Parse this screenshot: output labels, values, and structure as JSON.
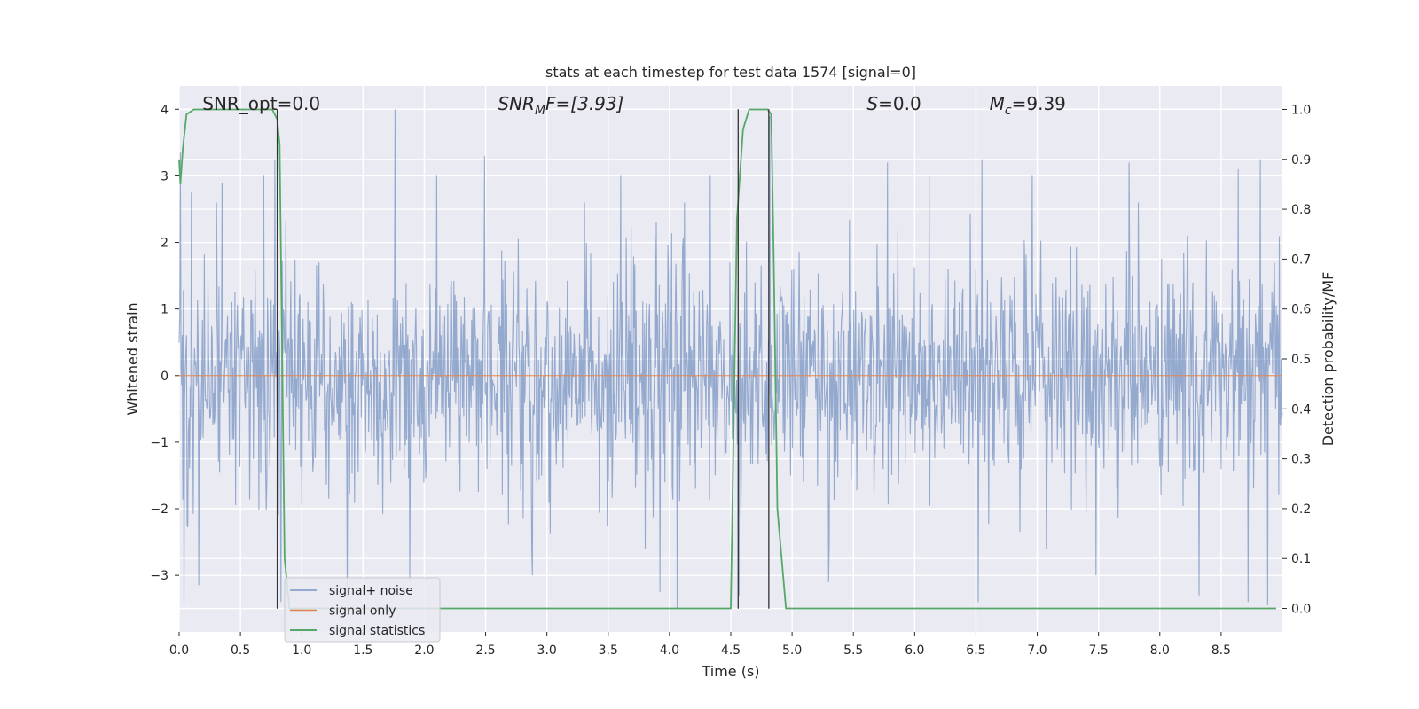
{
  "chart_data": {
    "type": "line",
    "title": "stats at each timestep for test data 1574 [signal=0]",
    "xlabel": "Time (s)",
    "ylabel": "Whitened strain",
    "y2label": "Detection probability/MF",
    "xlim": [
      0.0,
      9.0
    ],
    "ylim": [
      -3.85,
      4.35
    ],
    "y2lim": [
      -0.047,
      1.047
    ],
    "xticks": [
      "0.0",
      "0.5",
      "1.0",
      "1.5",
      "2.0",
      "2.5",
      "3.0",
      "3.5",
      "4.0",
      "4.5",
      "5.0",
      "5.5",
      "6.0",
      "6.5",
      "7.0",
      "7.5",
      "8.0",
      "8.5"
    ],
    "xtick_values": [
      0.0,
      0.5,
      1.0,
      1.5,
      2.0,
      2.5,
      3.0,
      3.5,
      4.0,
      4.5,
      5.0,
      5.5,
      6.0,
      6.5,
      7.0,
      7.5,
      8.0,
      8.5
    ],
    "yticks": [
      "−3",
      "−2",
      "−1",
      "0",
      "1",
      "2",
      "3",
      "4"
    ],
    "ytick_values": [
      -3,
      -2,
      -1,
      0,
      1,
      2,
      3,
      4
    ],
    "y2ticks": [
      "0.0",
      "0.1",
      "0.2",
      "0.3",
      "0.4",
      "0.5",
      "0.6",
      "0.7",
      "0.8",
      "0.9",
      "1.0"
    ],
    "y2tick_values": [
      0.0,
      0.1,
      0.2,
      0.3,
      0.4,
      0.5,
      0.6,
      0.7,
      0.8,
      0.9,
      1.0
    ],
    "grid": true,
    "legend_placement": "lower-left",
    "annotations": [
      {
        "name": "snr-opt",
        "text": "SNR_opt=0.0",
        "x": 0.19
      },
      {
        "name": "snr-mf",
        "text": "SNR",
        "sub": "M",
        "tail": "F=[3.93]",
        "italic": true,
        "x": 2.6
      },
      {
        "name": "s-stat",
        "text": "S",
        "tail": "=0.0",
        "italic": true,
        "x": 5.61
      },
      {
        "name": "mc",
        "text": "M",
        "sub": "c",
        "tail": "=9.39",
        "italic": true,
        "x": 6.61
      }
    ],
    "series": [
      {
        "name": "signal+ noise",
        "color": "#4c72b0",
        "opacity": 0.55,
        "description_kind": "noise",
        "sample_count": 1800,
        "typical_abs": 1.3,
        "peaks": [
          {
            "x": 0.01,
            "y": 3.35
          },
          {
            "x": 0.04,
            "y": -3.45
          },
          {
            "x": 0.1,
            "y": 2.75
          },
          {
            "x": 0.16,
            "y": -3.15
          },
          {
            "x": 0.35,
            "y": 2.9
          },
          {
            "x": 0.69,
            "y": 3.0
          },
          {
            "x": 0.78,
            "y": 3.25
          },
          {
            "x": 0.83,
            "y": -3.4
          },
          {
            "x": 1.37,
            "y": -3.35
          },
          {
            "x": 1.76,
            "y": 4.0
          },
          {
            "x": 1.88,
            "y": -3.1
          },
          {
            "x": 2.1,
            "y": 3.0
          },
          {
            "x": 2.49,
            "y": 3.3
          },
          {
            "x": 2.88,
            "y": -3.0
          },
          {
            "x": 3.6,
            "y": 3.0
          },
          {
            "x": 3.92,
            "y": -3.25
          },
          {
            "x": 4.06,
            "y": -3.5
          },
          {
            "x": 4.33,
            "y": 3.0
          },
          {
            "x": 4.57,
            "y": -3.3
          },
          {
            "x": 4.82,
            "y": 3.9
          },
          {
            "x": 5.3,
            "y": -3.1
          },
          {
            "x": 5.78,
            "y": 3.2
          },
          {
            "x": 6.12,
            "y": 3.0
          },
          {
            "x": 6.52,
            "y": -3.4
          },
          {
            "x": 6.55,
            "y": 3.25
          },
          {
            "x": 6.96,
            "y": 3.0
          },
          {
            "x": 7.48,
            "y": -3.0
          },
          {
            "x": 7.75,
            "y": 3.2
          },
          {
            "x": 8.32,
            "y": -3.3
          },
          {
            "x": 8.64,
            "y": 3.1
          },
          {
            "x": 8.72,
            "y": -3.4
          },
          {
            "x": 8.82,
            "y": 3.25
          },
          {
            "x": 8.88,
            "y": -3.45
          }
        ]
      },
      {
        "name": "signal only",
        "color": "#dd8452",
        "x": [
          0.0,
          9.0
        ],
        "y": [
          0.0,
          0.0
        ]
      },
      {
        "name": "signal statistics",
        "color": "#55a868",
        "axis": "right",
        "x": [
          0.0,
          0.01,
          0.03,
          0.06,
          0.12,
          0.76,
          0.8,
          0.82,
          0.86,
          0.9,
          4.5,
          4.55,
          4.6,
          4.65,
          4.8,
          4.83,
          4.85,
          4.88,
          4.95,
          8.95
        ],
        "y": [
          0.9,
          0.85,
          0.92,
          0.99,
          1.0,
          1.0,
          0.98,
          0.93,
          0.1,
          0.0,
          0.0,
          0.78,
          0.96,
          1.0,
          1.0,
          0.99,
          0.7,
          0.2,
          0.0,
          0.0
        ]
      }
    ],
    "vertical_markers": {
      "color": "#333333",
      "lines": [
        {
          "x": 0.8,
          "y_from": -3.5,
          "y_to": 4.0
        },
        {
          "x": 4.56,
          "y_from": -3.5,
          "y_to": 4.0
        },
        {
          "x": 4.81,
          "y_from": -3.5,
          "y_to": 4.0
        }
      ]
    },
    "colors": {
      "plot_background": "#eaeaf2",
      "grid": "#ffffff",
      "legend_background": "#eaeaf2",
      "legend_border": "#cccccc"
    }
  }
}
